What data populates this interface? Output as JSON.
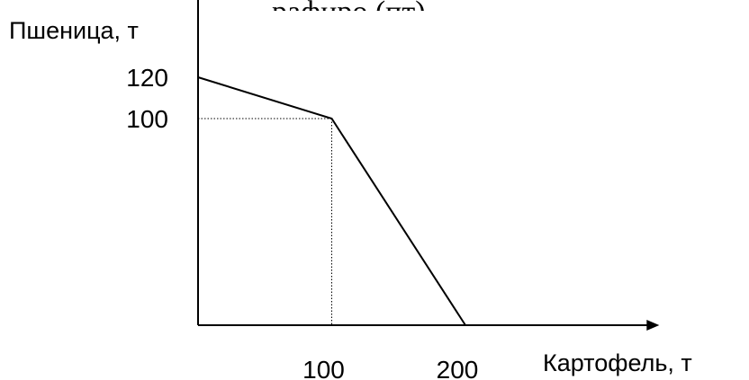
{
  "top_partial_text": "рафиро (пт)",
  "chart_data": {
    "type": "line",
    "title": "",
    "xlabel": "Картофель, т",
    "ylabel": "Пшеница, т",
    "x_ticks": [
      {
        "value": 100,
        "label": "100"
      },
      {
        "value": 200,
        "label": "200"
      }
    ],
    "y_ticks": [
      {
        "value": 100,
        "label": "100"
      },
      {
        "value": 120,
        "label": "120"
      }
    ],
    "series": [
      {
        "points": [
          [
            0,
            120
          ],
          [
            100,
            100
          ],
          [
            200,
            0
          ]
        ]
      }
    ],
    "guides": [
      {
        "point": [
          100,
          100
        ],
        "style": "dotted"
      }
    ],
    "xlim": [
      0,
      345
    ],
    "ylim": [
      0,
      175
    ],
    "grid": false,
    "legend": "none",
    "line_color": "#000000"
  }
}
